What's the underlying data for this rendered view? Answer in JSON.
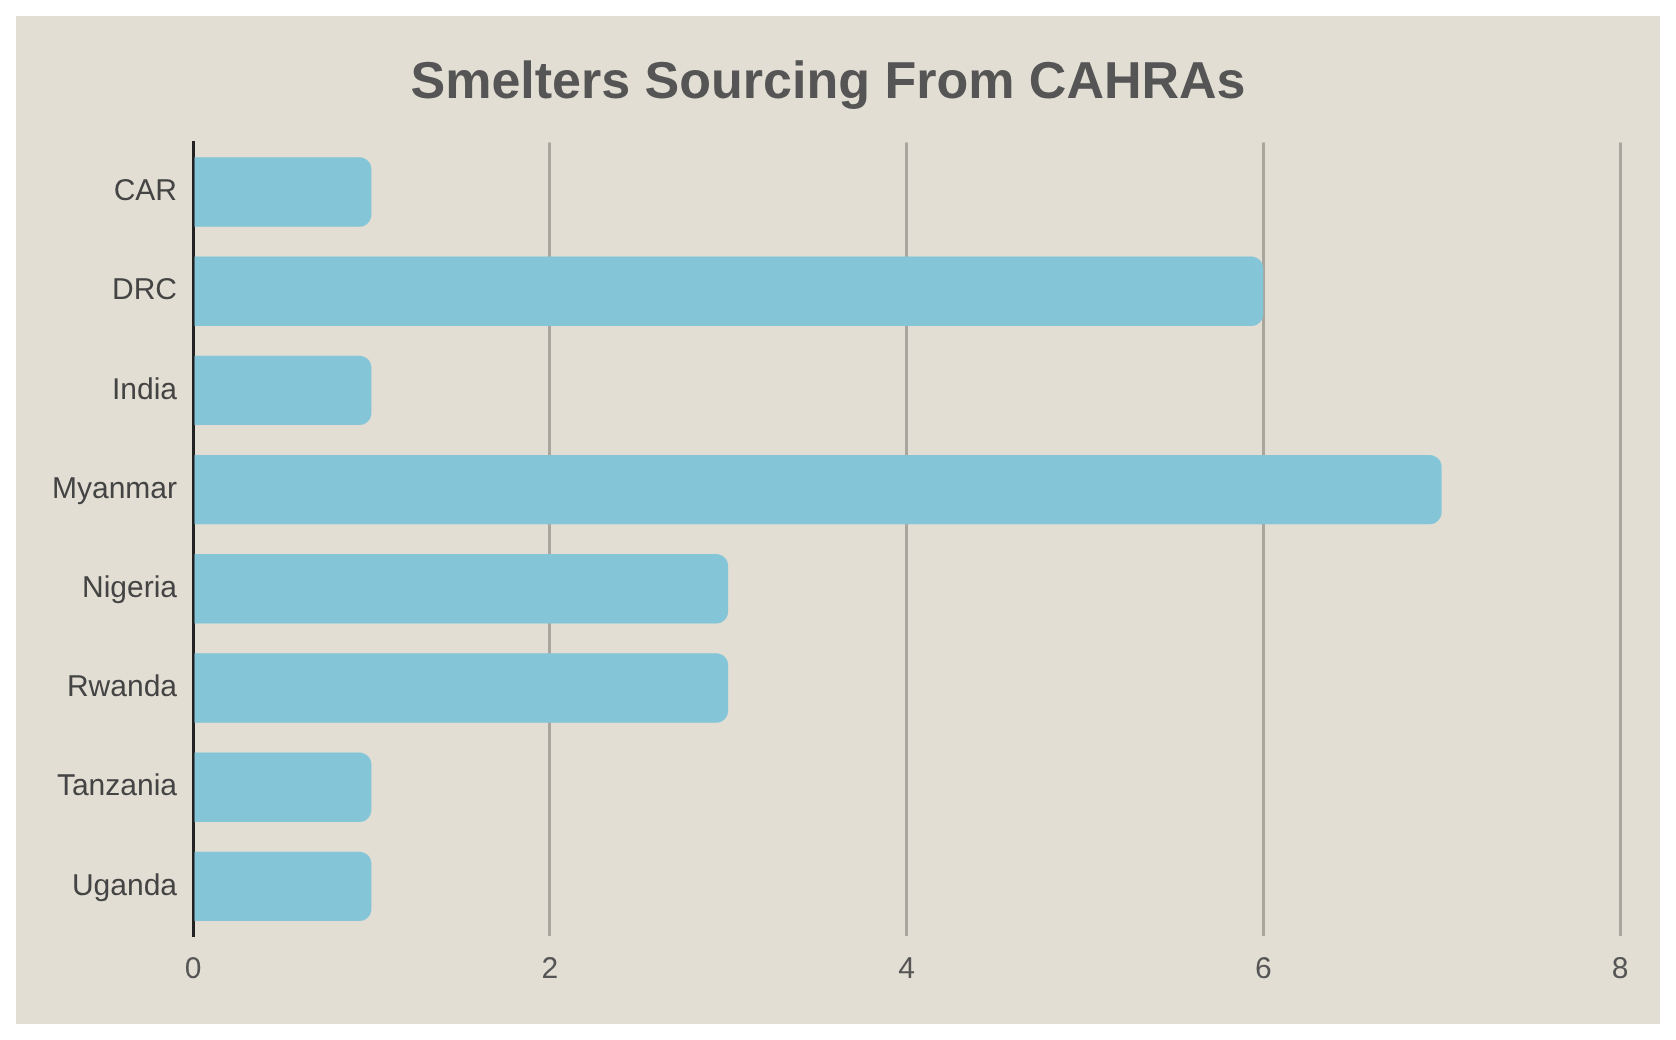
{
  "chart_data": {
    "type": "bar",
    "orientation": "horizontal",
    "title": "Smelters Sourcing From CAHRAs",
    "categories": [
      "CAR",
      "DRC",
      "India",
      "Myanmar",
      "Nigeria",
      "Rwanda",
      "Tanzania",
      "Uganda"
    ],
    "values": [
      1,
      6,
      1,
      7,
      3,
      3,
      1,
      1
    ],
    "color": "#85c5d8",
    "xlim": [
      0,
      8
    ],
    "xticks": [
      0,
      2,
      4,
      6,
      8
    ],
    "grid": "x",
    "legend": false
  }
}
